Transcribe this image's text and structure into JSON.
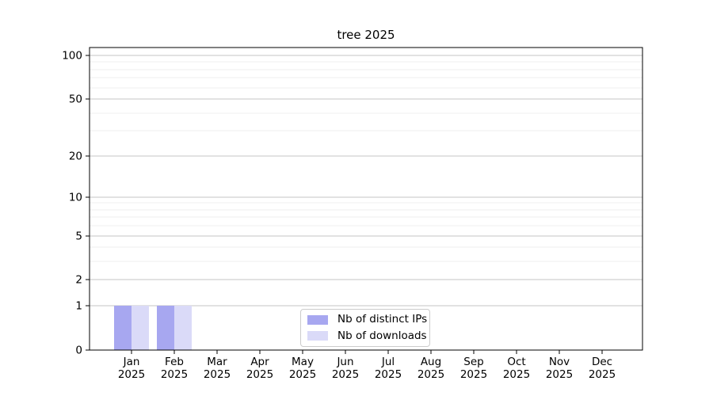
{
  "chart_data": {
    "type": "bar",
    "title": "tree 2025",
    "categories": [
      "Jan",
      "Feb",
      "Mar",
      "Apr",
      "May",
      "Jun",
      "Jul",
      "Aug",
      "Sep",
      "Oct",
      "Nov",
      "Dec"
    ],
    "category_year": "2025",
    "series": [
      {
        "name": "Nb of distinct IPs",
        "color": "#a7a7f0",
        "values": [
          1,
          1,
          0,
          0,
          0,
          0,
          0,
          0,
          0,
          0,
          0,
          0
        ]
      },
      {
        "name": "Nb of downloads",
        "color": "#dadaf8",
        "values": [
          1,
          1,
          0,
          0,
          0,
          0,
          0,
          0,
          0,
          0,
          0,
          0
        ]
      }
    ],
    "xlabel": "",
    "ylabel": "",
    "yscale": "log1p",
    "ylim": [
      0,
      113.2
    ],
    "y_major_ticks": [
      0,
      1,
      2,
      5,
      10,
      20,
      50,
      100
    ],
    "y_minor_ticks": [
      3,
      4,
      6,
      7,
      8,
      9,
      30,
      40,
      60,
      70,
      80,
      90
    ],
    "grid": {
      "major_color": "#c6c6c6",
      "minor_color": "#efefef",
      "visible": true
    },
    "axis_color": "#000000",
    "legend": {
      "position": "lower center"
    }
  }
}
